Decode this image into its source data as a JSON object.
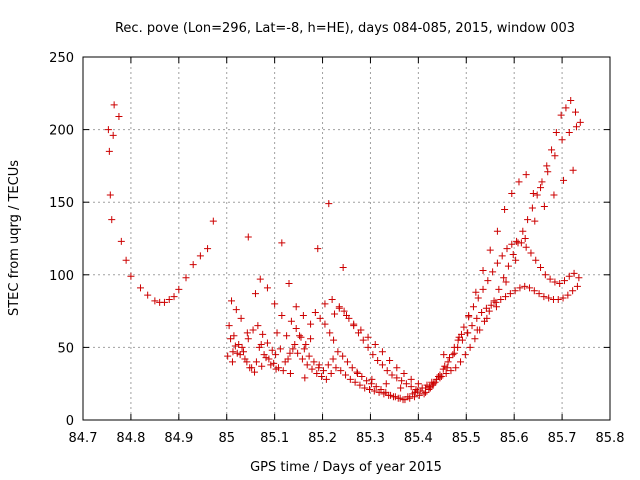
{
  "chart_data": {
    "type": "scatter",
    "title": "Rec. pove (Lon=296, Lat=-8, h=HE), days 084-085, 2015, window 003",
    "xlabel": "GPS time / Days of year 2015",
    "ylabel": "STEC from uqrg / TECUs",
    "xlim": [
      84.7,
      85.8
    ],
    "ylim": [
      0,
      250
    ],
    "xticks": [
      "84.7",
      "84.8",
      "84.9",
      "85",
      "85.1",
      "85.2",
      "85.3",
      "85.4",
      "85.5",
      "85.6",
      "85.7",
      "85.8"
    ],
    "yticks": [
      "0",
      "50",
      "100",
      "150",
      "200",
      "250"
    ],
    "grid": true,
    "marker": "+",
    "color": "#cc0000",
    "series": [
      {
        "x": [
          84.753,
          84.755,
          84.757,
          84.76,
          84.763,
          84.765,
          84.775,
          84.78,
          84.79,
          84.8,
          84.82,
          84.835,
          84.85,
          84.86,
          84.87,
          84.88,
          84.89,
          84.9,
          84.915,
          84.93,
          84.945,
          84.96,
          84.972
        ],
        "y": [
          200,
          185,
          155,
          138,
          196,
          217,
          209,
          123,
          110,
          99,
          91,
          86,
          82,
          81,
          81,
          83,
          85,
          90,
          98,
          107,
          113,
          118,
          137
        ]
      },
      {
        "x": [
          85.01,
          85.02,
          85.03,
          85.045,
          85.06,
          85.07,
          85.085,
          85.1,
          85.115,
          85.13,
          85.145,
          85.16,
          85.175,
          85.19,
          85.205,
          85.22,
          85.235,
          85.25,
          85.265,
          85.28,
          85.295,
          85.31,
          85.325,
          85.34,
          85.355,
          85.37,
          85.385,
          85.4,
          85.415,
          85.43,
          85.445,
          85.46,
          85.475,
          85.49,
          85.505,
          85.52,
          85.535,
          85.55,
          85.565,
          85.58,
          85.595,
          85.61,
          85.625,
          85.64,
          85.655,
          85.67,
          85.685,
          85.7,
          85.715,
          85.73
        ],
        "y": [
          82,
          76,
          70,
          126,
          87,
          97,
          91,
          80,
          122,
          94,
          78,
          72,
          66,
          118,
          80,
          83,
          78,
          72,
          66,
          62,
          57,
          52,
          47,
          41,
          36,
          32,
          28,
          25,
          22,
          24,
          29,
          36,
          46,
          59,
          72,
          88,
          103,
          117,
          130,
          145,
          156,
          164,
          169,
          156,
          160,
          171,
          182,
          193,
          198,
          202
        ]
      },
      {
        "x": [
          85.005,
          85.015,
          85.025,
          85.035,
          85.045,
          85.055,
          85.065,
          85.075,
          85.085,
          85.095,
          85.105,
          85.115,
          85.125,
          85.135,
          85.145,
          85.155,
          85.165,
          85.175,
          85.185,
          85.195,
          85.205,
          85.215,
          85.225,
          85.235,
          85.245,
          85.255,
          85.265,
          85.275,
          85.285,
          85.295,
          85.305,
          85.315,
          85.325,
          85.335,
          85.345,
          85.355,
          85.365,
          85.375,
          85.385,
          85.395,
          85.405,
          85.415,
          85.425,
          85.435,
          85.445,
          85.455,
          85.465,
          85.475,
          85.485,
          85.495,
          85.505,
          85.515,
          85.525,
          85.535,
          85.545,
          85.555,
          85.565,
          85.575,
          85.585,
          85.595,
          85.605,
          85.615,
          85.625,
          85.635,
          85.645,
          85.655,
          85.665,
          85.675,
          85.685,
          85.695,
          85.705,
          85.715,
          85.725,
          85.735
        ],
        "y": [
          65,
          58,
          52,
          47,
          56,
          62,
          65,
          59,
          53,
          48,
          60,
          72,
          58,
          68,
          63,
          57,
          52,
          56,
          74,
          70,
          66,
          60,
          73,
          77,
          75,
          70,
          65,
          60,
          55,
          50,
          45,
          41,
          38,
          34,
          31,
          29,
          27,
          25,
          23,
          21,
          20,
          19,
          22,
          26,
          31,
          37,
          43,
          50,
          57,
          64,
          71,
          78,
          84,
          90,
          96,
          102,
          108,
          113,
          118,
          121,
          123,
          122,
          119,
          115,
          110,
          105,
          100,
          97,
          95,
          94,
          96,
          99,
          101,
          98
        ]
      },
      {
        "x": [
          85.002,
          85.012,
          85.022,
          85.032,
          85.042,
          85.052,
          85.062,
          85.072,
          85.082,
          85.092,
          85.102,
          85.112,
          85.122,
          85.132,
          85.142,
          85.152,
          85.162,
          85.172,
          85.182,
          85.192,
          85.202,
          85.212,
          85.222,
          85.232,
          85.242,
          85.252,
          85.262,
          85.272,
          85.282,
          85.292,
          85.302,
          85.312,
          85.322,
          85.332,
          85.342,
          85.352,
          85.362,
          85.372,
          85.382,
          85.392,
          85.402,
          85.412,
          85.422,
          85.432,
          85.442,
          85.452,
          85.462,
          85.472,
          85.482,
          85.492,
          85.502,
          85.512,
          85.522,
          85.532,
          85.542,
          85.552,
          85.562,
          85.572,
          85.582,
          85.592,
          85.602,
          85.612,
          85.622,
          85.632,
          85.642,
          85.652,
          85.662,
          85.672,
          85.682,
          85.692,
          85.702,
          85.712,
          85.722,
          85.732
        ],
        "y": [
          44,
          40,
          46,
          50,
          40,
          36,
          40,
          52,
          43,
          38,
          45,
          49,
          40,
          46,
          52,
          58,
          49,
          44,
          40,
          36,
          34,
          38,
          42,
          47,
          44,
          40,
          36,
          33,
          30,
          27,
          25,
          23,
          21,
          19,
          17,
          16,
          15,
          14,
          15,
          16,
          17,
          18,
          21,
          25,
          30,
          35,
          40,
          45,
          50,
          55,
          60,
          65,
          70,
          74,
          77,
          79,
          81,
          83,
          85,
          87,
          89,
          91,
          92,
          91,
          89,
          87,
          85,
          84,
          83,
          83,
          84,
          86,
          89,
          92
        ]
      },
      {
        "x": [
          85.008,
          85.018,
          85.028,
          85.038,
          85.048,
          85.058,
          85.068,
          85.078,
          85.088,
          85.098,
          85.108,
          85.118,
          85.128,
          85.138,
          85.148,
          85.158,
          85.168,
          85.178,
          85.188,
          85.198,
          85.208,
          85.218,
          85.228,
          85.238,
          85.248,
          85.258,
          85.268,
          85.278,
          85.288,
          85.298,
          85.308,
          85.318,
          85.328,
          85.338,
          85.348,
          85.358,
          85.368,
          85.378,
          85.388,
          85.398,
          85.408,
          85.418,
          85.428,
          85.438,
          85.448,
          85.458,
          85.468,
          85.478,
          85.488,
          85.498,
          85.508,
          85.518,
          85.528,
          85.538,
          85.548,
          85.558,
          85.568,
          85.578,
          85.588,
          85.598,
          85.608,
          85.618,
          85.628,
          85.638,
          85.648,
          85.658,
          85.668,
          85.678,
          85.688,
          85.698,
          85.708,
          85.718,
          85.728,
          85.738
        ],
        "y": [
          56,
          51,
          45,
          42,
          36,
          33,
          50,
          45,
          42,
          39,
          36,
          34,
          42,
          49,
          46,
          42,
          38,
          35,
          32,
          30,
          28,
          32,
          36,
          34,
          31,
          28,
          26,
          24,
          22,
          21,
          20,
          19,
          18,
          17,
          16,
          15,
          14,
          16,
          18,
          20,
          22,
          24,
          26,
          28,
          30,
          32,
          34,
          36,
          40,
          45,
          50,
          56,
          62,
          68,
          75,
          82,
          90,
          98,
          106,
          114,
          122,
          130,
          138,
          146,
          155,
          164,
          175,
          186,
          198,
          210,
          215,
          220,
          212,
          205
        ]
      },
      {
        "x": [
          85.013,
          85.043,
          85.073,
          85.103,
          85.133,
          85.163,
          85.193,
          85.213,
          85.223,
          85.243,
          85.273,
          85.303,
          85.333,
          85.363,
          85.393,
          85.423,
          85.453,
          85.483,
          85.503,
          85.523,
          85.543,
          85.563,
          85.583,
          85.603,
          85.623,
          85.643,
          85.663,
          85.683,
          85.703,
          85.723
        ],
        "y": [
          47,
          60,
          37,
          35,
          32,
          29,
          38,
          149,
          55,
          105,
          32,
          28,
          25,
          22,
          19,
          23,
          45,
          55,
          60,
          62,
          70,
          78,
          95,
          110,
          125,
          137,
          147,
          155,
          165,
          172
        ]
      }
    ]
  }
}
